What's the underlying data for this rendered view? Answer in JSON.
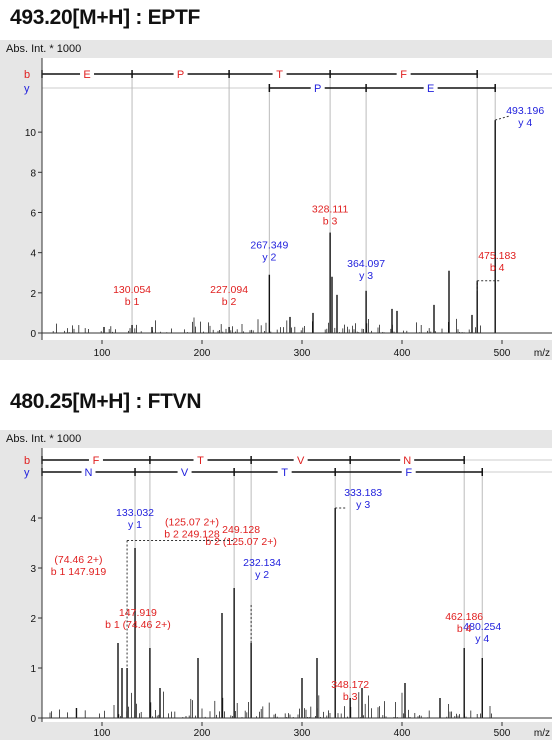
{
  "charts": [
    {
      "heading": "493.20[M+H] : EPTF",
      "axis_title": "Abs. Int. * 1000",
      "xunit": "m/z",
      "b_label": "b",
      "y_label": "y",
      "xticks": [
        100,
        200,
        300,
        400,
        500
      ],
      "yticks": [
        0,
        2,
        4,
        6,
        8,
        10
      ],
      "xlim": [
        40,
        550
      ],
      "ylim": [
        0,
        11.5
      ],
      "b_series": {
        "bounds": [
          40,
          130.054,
          227.094,
          328.111,
          475.183
        ],
        "residues": [
          "E",
          "P",
          "T",
          "F"
        ]
      },
      "y_series": {
        "bounds": [
          267.349,
          364.097,
          493.196
        ],
        "residues": [
          "P",
          "E"
        ]
      },
      "b_ions": [
        {
          "mz": 130.054,
          "text": [
            "130.054",
            "b 1"
          ]
        },
        {
          "mz": 227.094,
          "text": [
            "227.094",
            "b 2"
          ]
        },
        {
          "mz": 328.111,
          "text": [
            "328.111",
            "b 3"
          ]
        },
        {
          "mz": 475.183,
          "text": [
            "475.183",
            "b 4"
          ]
        }
      ],
      "y_ions": [
        {
          "mz": 267.349,
          "text": [
            "267.349",
            "y 2"
          ]
        },
        {
          "mz": 364.097,
          "text": [
            "364.097",
            "y 3"
          ]
        },
        {
          "mz": 493.196,
          "text": [
            "493.196",
            "y 4"
          ]
        }
      ],
      "peaks": [
        {
          "mz": 130.054,
          "y": 0.4
        },
        {
          "mz": 227.094,
          "y": 0.3
        },
        {
          "mz": 267.349,
          "y": 2.9
        },
        {
          "mz": 328.111,
          "y": 5.0
        },
        {
          "mz": 364.097,
          "y": 2.1
        },
        {
          "mz": 475.183,
          "y": 2.6
        },
        {
          "mz": 493.196,
          "y": 10.6
        },
        {
          "mz": 330.0,
          "y": 2.8
        },
        {
          "mz": 335.0,
          "y": 1.9
        },
        {
          "mz": 311.0,
          "y": 1.0
        },
        {
          "mz": 447.0,
          "y": 3.1
        },
        {
          "mz": 432.0,
          "y": 1.4
        },
        {
          "mz": 390.0,
          "y": 1.2
        },
        {
          "mz": 470.0,
          "y": 0.9
        },
        {
          "mz": 288.0,
          "y": 0.8
        },
        {
          "mz": 395.0,
          "y": 1.1
        },
        {
          "mz": 150.0,
          "y": 0.3
        },
        {
          "mz": 102.0,
          "y": 0.3
        }
      ],
      "colors": {
        "b": "#e02020",
        "y": "#2222dd",
        "peak": "#111111",
        "guide": "#bbbbbb"
      }
    },
    {
      "heading": "480.25[M+H] : FTVN",
      "axis_title": "Abs. Int. * 1000",
      "xunit": "m/z",
      "b_label": "b",
      "y_label": "y",
      "xticks": [
        100,
        200,
        300,
        400,
        500
      ],
      "yticks": [
        0,
        1,
        2,
        3,
        4
      ],
      "xlim": [
        40,
        550
      ],
      "ylim": [
        0,
        4.6
      ],
      "b_series": {
        "bounds": [
          40,
          147.919,
          249.128,
          348.172,
          462.186
        ],
        "residues": [
          "F",
          "T",
          "V",
          "N"
        ]
      },
      "y_series": {
        "bounds": [
          40,
          133.032,
          232.134,
          333.183,
          480.254
        ],
        "residues": [
          "N",
          "V",
          "T",
          "F"
        ]
      },
      "b_ions": [
        {
          "mz": 147.919,
          "text": [
            "147.919",
            "b 1 (74.46 2+)"
          ]
        },
        {
          "mz": 249.128,
          "text": [
            "249.128",
            "b 2 (125.07 2+)"
          ]
        },
        {
          "mz": 348.172,
          "text": [
            "348.172",
            "b 3"
          ]
        },
        {
          "mz": 462.186,
          "text": [
            "462.186",
            "b 4"
          ]
        }
      ],
      "y_ions": [
        {
          "mz": 133.032,
          "text": [
            "133.032",
            "y 1"
          ]
        },
        {
          "mz": 232.134,
          "text": [
            "232.134",
            "y 2"
          ]
        },
        {
          "mz": 333.183,
          "text": [
            "333.183",
            "y 3"
          ]
        },
        {
          "mz": 480.254,
          "text": [
            "480.254",
            "y 4"
          ]
        }
      ],
      "doubly_charged": [
        {
          "text": [
            "(74.46 2+)",
            "b 1 147.919"
          ],
          "mz": 74.46
        },
        {
          "text": [
            "(125.07 2+)",
            "b 2 249.128"
          ],
          "mz": 125.07
        }
      ],
      "peaks": [
        {
          "mz": 74.46,
          "y": 0.2
        },
        {
          "mz": 125.07,
          "y": 1.0
        },
        {
          "mz": 133.032,
          "y": 3.4
        },
        {
          "mz": 147.919,
          "y": 1.4
        },
        {
          "mz": 232.134,
          "y": 2.6
        },
        {
          "mz": 249.128,
          "y": 1.5
        },
        {
          "mz": 333.183,
          "y": 4.2
        },
        {
          "mz": 348.172,
          "y": 0.4
        },
        {
          "mz": 462.186,
          "y": 1.4
        },
        {
          "mz": 480.254,
          "y": 1.2
        },
        {
          "mz": 116.0,
          "y": 1.5
        },
        {
          "mz": 120.0,
          "y": 1.0
        },
        {
          "mz": 196.0,
          "y": 1.2
        },
        {
          "mz": 220.0,
          "y": 2.1
        },
        {
          "mz": 300.0,
          "y": 0.8
        },
        {
          "mz": 315.0,
          "y": 1.2
        },
        {
          "mz": 360.0,
          "y": 0.6
        },
        {
          "mz": 403.0,
          "y": 0.7
        },
        {
          "mz": 438.0,
          "y": 0.4
        },
        {
          "mz": 158.0,
          "y": 0.6
        }
      ],
      "colors": {
        "b": "#e02020",
        "y": "#2222dd",
        "peak": "#111111",
        "guide": "#bbbbbb"
      }
    }
  ],
  "chart_data": [
    {
      "type": "bar",
      "title": "493.20[M+H] : EPTF",
      "ylabel": "Abs. Int. * 1000",
      "xlabel": "m/z",
      "xlim": [
        40,
        550
      ],
      "ylim": [
        0,
        11.5
      ],
      "series": [
        {
          "name": "b",
          "x": [
            130.054,
            227.094,
            328.111,
            475.183
          ],
          "values": [
            0.4,
            0.3,
            5.0,
            2.6
          ]
        },
        {
          "name": "y",
          "x": [
            267.349,
            364.097,
            493.196
          ],
          "values": [
            2.9,
            2.1,
            10.6
          ]
        }
      ]
    },
    {
      "type": "bar",
      "title": "480.25[M+H] : FTVN",
      "ylabel": "Abs. Int. * 1000",
      "xlabel": "m/z",
      "xlim": [
        40,
        550
      ],
      "ylim": [
        0,
        4.6
      ],
      "series": [
        {
          "name": "b",
          "x": [
            147.919,
            249.128,
            348.172,
            462.186
          ],
          "values": [
            1.4,
            1.5,
            0.4,
            1.4
          ]
        },
        {
          "name": "y",
          "x": [
            133.032,
            232.134,
            333.183,
            480.254
          ],
          "values": [
            3.4,
            2.6,
            4.2,
            1.2
          ]
        }
      ]
    }
  ]
}
